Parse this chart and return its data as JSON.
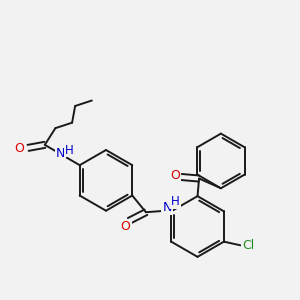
{
  "bg_color": "#f2f2f2",
  "bond_color": "#1a1a1a",
  "bond_width": 1.4,
  "atom_colors": {
    "O": "#dd0000",
    "N": "#0000cc",
    "Cl": "#228B22",
    "H": "#0000cc"
  },
  "font_size": 8.5
}
